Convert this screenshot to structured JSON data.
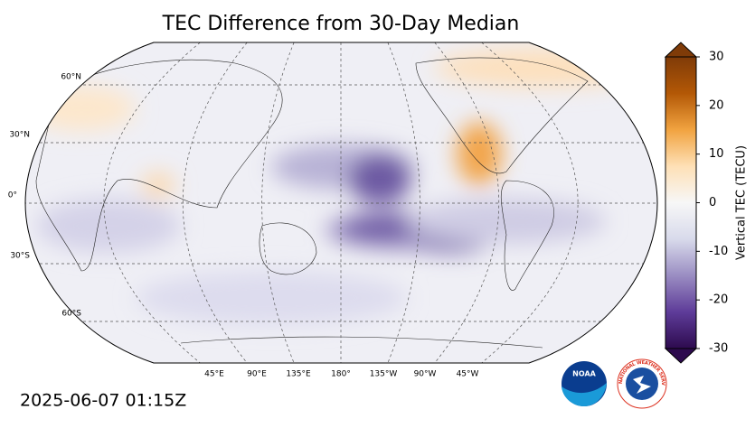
{
  "title": "TEC Difference from 30-Day Median",
  "timestamp": "2025-06-07 01:15Z",
  "colorbar": {
    "label": "Vertical TEC (TECU)",
    "lim": [
      -30,
      30
    ],
    "ticks": [
      -30,
      -20,
      -10,
      0,
      10,
      20,
      30
    ],
    "colors": [
      "#2d0a4e",
      "#5e3c99",
      "#9a8dc2",
      "#d8daeb",
      "#f7f7f7",
      "#fee0b6",
      "#f1a340",
      "#b35806",
      "#7f3b08"
    ]
  },
  "lat_labels": [
    "60°N",
    "30°N",
    "0°",
    "30°S",
    "60°S"
  ],
  "lon_labels": [
    "45°E",
    "90°E",
    "135°E",
    "180°",
    "135°W",
    "90°W",
    "45°W"
  ],
  "logos": {
    "noaa": "NOAA",
    "nws": "NATIONAL WEATHER SERVICE"
  }
}
